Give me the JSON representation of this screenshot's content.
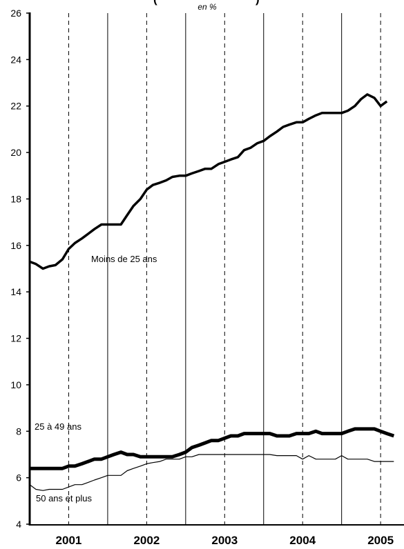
{
  "chart_data": {
    "type": "line",
    "title_fragment": "(",
    "title_fragment_right": ")",
    "unit": "en %",
    "ylim": [
      4,
      26
    ],
    "yticks": [
      4,
      6,
      8,
      10,
      12,
      14,
      16,
      18,
      20,
      22,
      24,
      26
    ],
    "x_range": [
      2000.5,
      2005.3
    ],
    "x_year_labels": [
      "2001",
      "2002",
      "2003",
      "2004",
      "2005"
    ],
    "x_year_positions": [
      2001.0,
      2002.0,
      2003.0,
      2004.0,
      2005.0
    ],
    "year_boundaries": [
      2001.0,
      2002.0,
      2003.0,
      2004.0,
      2005.0
    ],
    "grid": "vertical lines at quarters, dashed at year mid-points",
    "series": [
      {
        "name": "Moins de 25 ans",
        "line_width": 3.5,
        "points": [
          [
            2000.5,
            15.3
          ],
          [
            2000.58,
            15.2
          ],
          [
            2000.67,
            15.0
          ],
          [
            2000.75,
            15.1
          ],
          [
            2000.83,
            15.15
          ],
          [
            2000.92,
            15.4
          ],
          [
            2001.0,
            15.85
          ],
          [
            2001.08,
            16.1
          ],
          [
            2001.17,
            16.3
          ],
          [
            2001.25,
            16.5
          ],
          [
            2001.33,
            16.7
          ],
          [
            2001.42,
            16.9
          ],
          [
            2001.5,
            16.9
          ],
          [
            2001.58,
            16.9
          ],
          [
            2001.67,
            16.9
          ],
          [
            2001.75,
            17.3
          ],
          [
            2001.83,
            17.7
          ],
          [
            2001.92,
            18.0
          ],
          [
            2002.0,
            18.4
          ],
          [
            2002.08,
            18.6
          ],
          [
            2002.17,
            18.7
          ],
          [
            2002.25,
            18.8
          ],
          [
            2002.33,
            18.95
          ],
          [
            2002.42,
            19.0
          ],
          [
            2002.5,
            19.0
          ],
          [
            2002.58,
            19.1
          ],
          [
            2002.67,
            19.2
          ],
          [
            2002.75,
            19.3
          ],
          [
            2002.83,
            19.3
          ],
          [
            2002.92,
            19.5
          ],
          [
            2003.0,
            19.6
          ],
          [
            2003.08,
            19.7
          ],
          [
            2003.17,
            19.8
          ],
          [
            2003.25,
            20.1
          ],
          [
            2003.33,
            20.2
          ],
          [
            2003.42,
            20.4
          ],
          [
            2003.5,
            20.5
          ],
          [
            2003.58,
            20.7
          ],
          [
            2003.67,
            20.9
          ],
          [
            2003.75,
            21.1
          ],
          [
            2003.83,
            21.2
          ],
          [
            2003.92,
            21.3
          ],
          [
            2004.0,
            21.3
          ],
          [
            2004.08,
            21.45
          ],
          [
            2004.17,
            21.6
          ],
          [
            2004.25,
            21.7
          ],
          [
            2004.33,
            21.7
          ],
          [
            2004.42,
            21.7
          ],
          [
            2004.5,
            21.7
          ],
          [
            2004.58,
            21.8
          ],
          [
            2004.67,
            22.0
          ],
          [
            2004.75,
            22.3
          ],
          [
            2004.83,
            22.5
          ],
          [
            2004.92,
            22.35
          ],
          [
            2005.0,
            22.0
          ],
          [
            2005.08,
            22.2
          ]
        ]
      },
      {
        "name": "25 à 49 ans",
        "line_width": 5,
        "points": [
          [
            2000.5,
            6.4
          ],
          [
            2000.58,
            6.4
          ],
          [
            2000.67,
            6.4
          ],
          [
            2000.75,
            6.4
          ],
          [
            2000.83,
            6.4
          ],
          [
            2000.92,
            6.4
          ],
          [
            2001.0,
            6.5
          ],
          [
            2001.08,
            6.5
          ],
          [
            2001.17,
            6.6
          ],
          [
            2001.25,
            6.7
          ],
          [
            2001.33,
            6.8
          ],
          [
            2001.42,
            6.8
          ],
          [
            2001.5,
            6.9
          ],
          [
            2001.58,
            7.0
          ],
          [
            2001.67,
            7.1
          ],
          [
            2001.75,
            7.0
          ],
          [
            2001.83,
            7.0
          ],
          [
            2001.92,
            6.9
          ],
          [
            2002.0,
            6.9
          ],
          [
            2002.08,
            6.9
          ],
          [
            2002.17,
            6.9
          ],
          [
            2002.25,
            6.9
          ],
          [
            2002.33,
            6.9
          ],
          [
            2002.42,
            7.0
          ],
          [
            2002.5,
            7.1
          ],
          [
            2002.58,
            7.3
          ],
          [
            2002.67,
            7.4
          ],
          [
            2002.75,
            7.5
          ],
          [
            2002.83,
            7.6
          ],
          [
            2002.92,
            7.6
          ],
          [
            2003.0,
            7.7
          ],
          [
            2003.08,
            7.8
          ],
          [
            2003.17,
            7.8
          ],
          [
            2003.25,
            7.9
          ],
          [
            2003.33,
            7.9
          ],
          [
            2003.42,
            7.9
          ],
          [
            2003.5,
            7.9
          ],
          [
            2003.58,
            7.9
          ],
          [
            2003.67,
            7.8
          ],
          [
            2003.75,
            7.8
          ],
          [
            2003.83,
            7.8
          ],
          [
            2003.92,
            7.9
          ],
          [
            2004.0,
            7.9
          ],
          [
            2004.08,
            7.9
          ],
          [
            2004.17,
            8.0
          ],
          [
            2004.25,
            7.9
          ],
          [
            2004.33,
            7.9
          ],
          [
            2004.42,
            7.9
          ],
          [
            2004.5,
            7.9
          ],
          [
            2004.58,
            8.0
          ],
          [
            2004.67,
            8.1
          ],
          [
            2004.75,
            8.1
          ],
          [
            2004.83,
            8.1
          ],
          [
            2004.92,
            8.1
          ],
          [
            2005.0,
            8.0
          ],
          [
            2005.08,
            7.9
          ],
          [
            2005.17,
            7.8
          ]
        ]
      },
      {
        "name": "50 ans et plus",
        "line_width": 1.2,
        "points": [
          [
            2000.5,
            5.7
          ],
          [
            2000.58,
            5.5
          ],
          [
            2000.67,
            5.45
          ],
          [
            2000.75,
            5.5
          ],
          [
            2000.83,
            5.5
          ],
          [
            2000.92,
            5.5
          ],
          [
            2001.0,
            5.6
          ],
          [
            2001.08,
            5.7
          ],
          [
            2001.17,
            5.7
          ],
          [
            2001.25,
            5.8
          ],
          [
            2001.33,
            5.9
          ],
          [
            2001.42,
            6.0
          ],
          [
            2001.5,
            6.1
          ],
          [
            2001.58,
            6.1
          ],
          [
            2001.67,
            6.1
          ],
          [
            2001.75,
            6.3
          ],
          [
            2001.83,
            6.4
          ],
          [
            2001.92,
            6.5
          ],
          [
            2002.0,
            6.6
          ],
          [
            2002.08,
            6.65
          ],
          [
            2002.17,
            6.7
          ],
          [
            2002.25,
            6.8
          ],
          [
            2002.33,
            6.8
          ],
          [
            2002.42,
            6.8
          ],
          [
            2002.5,
            6.9
          ],
          [
            2002.58,
            6.9
          ],
          [
            2002.67,
            7.0
          ],
          [
            2002.75,
            7.0
          ],
          [
            2002.83,
            7.0
          ],
          [
            2002.92,
            7.0
          ],
          [
            2003.0,
            7.0
          ],
          [
            2003.08,
            7.0
          ],
          [
            2003.17,
            7.0
          ],
          [
            2003.25,
            7.0
          ],
          [
            2003.33,
            7.0
          ],
          [
            2003.42,
            7.0
          ],
          [
            2003.5,
            7.0
          ],
          [
            2003.58,
            7.0
          ],
          [
            2003.67,
            6.95
          ],
          [
            2003.75,
            6.95
          ],
          [
            2003.83,
            6.95
          ],
          [
            2003.92,
            6.95
          ],
          [
            2004.0,
            6.8
          ],
          [
            2004.08,
            6.95
          ],
          [
            2004.17,
            6.8
          ],
          [
            2004.25,
            6.8
          ],
          [
            2004.33,
            6.8
          ],
          [
            2004.42,
            6.8
          ],
          [
            2004.5,
            6.95
          ],
          [
            2004.58,
            6.8
          ],
          [
            2004.67,
            6.8
          ],
          [
            2004.75,
            6.8
          ],
          [
            2004.83,
            6.8
          ],
          [
            2004.92,
            6.7
          ],
          [
            2005.0,
            6.7
          ],
          [
            2005.08,
            6.7
          ],
          [
            2005.17,
            6.7
          ]
        ]
      }
    ]
  }
}
